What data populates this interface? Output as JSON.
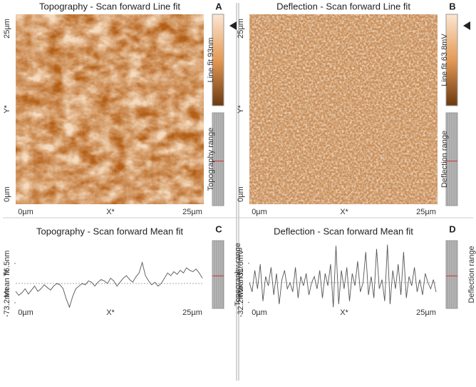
{
  "panels": [
    {
      "letter": "A",
      "title": "Topography - Scan forward   Line fit",
      "x_label": "X*",
      "y_label": "Y*",
      "x_ticks": [
        "0µm",
        "25µm"
      ],
      "y_ticks": [
        "0µm",
        "25µm"
      ],
      "colorbar_label": "Line fit 93nm",
      "range_label": "Topography range"
    },
    {
      "letter": "B",
      "title": "Deflection - Scan forward   Line fit",
      "x_label": "X*",
      "y_label": "Y*",
      "x_ticks": [
        "0µm",
        "25µm"
      ],
      "y_ticks": [
        "0µm",
        "25µm"
      ],
      "colorbar_label": "Line fit 63.8mV",
      "range_label": "Deflection range"
    }
  ],
  "chart_data": [
    {
      "type": "line",
      "letter": "C",
      "title": "Topography - Scan forward   Mean fit",
      "y_label": "Mean fit",
      "x_label": "X*",
      "x_ticks": [
        "0µm",
        "25µm"
      ],
      "range_label": "Topography range",
      "color": "#555555",
      "ylim": [
        -95,
        155
      ],
      "yticks": [
        {
          "value": -73.2,
          "label": "-73.2nm"
        },
        {
          "value": 76.5,
          "label": "76.5nm"
        }
      ],
      "values": [
        -30,
        -45,
        -35,
        -20,
        -40,
        -25,
        -10,
        -30,
        -20,
        -5,
        -15,
        -25,
        -10,
        0,
        -5,
        -20,
        -60,
        -90,
        -50,
        -20,
        -10,
        0,
        -5,
        10,
        5,
        -10,
        5,
        15,
        10,
        0,
        20,
        10,
        -10,
        5,
        20,
        30,
        15,
        5,
        25,
        40,
        80,
        30,
        10,
        -5,
        5,
        -10,
        0,
        20,
        40,
        30,
        45,
        35,
        50,
        40,
        60,
        50,
        45,
        55,
        40,
        20
      ]
    },
    {
      "type": "line",
      "letter": "D",
      "title": "Deflection - Scan forward   Mean fit",
      "y_label": "Mean fit",
      "x_label": "X*",
      "x_ticks": [
        "0µm",
        "25µm"
      ],
      "range_label": "Deflection range",
      "color": "#555555",
      "ylim": [
        -42,
        65
      ],
      "yticks": [
        {
          "value": -32.2,
          "label": "-32.2mV"
        },
        {
          "value": 31.6,
          "label": "31.6mV"
        }
      ],
      "values": [
        0,
        -15,
        20,
        -10,
        30,
        -30,
        10,
        -5,
        25,
        -20,
        15,
        -35,
        5,
        20,
        -10,
        0,
        -15,
        25,
        -25,
        10,
        -5,
        15,
        -20,
        0,
        10,
        -10,
        20,
        -25,
        15,
        -5,
        30,
        -40,
        60,
        -35,
        20,
        -10,
        25,
        -30,
        15,
        -5,
        35,
        -15,
        0,
        50,
        -20,
        10,
        -25,
        55,
        -10,
        5,
        -30,
        62,
        -35,
        20,
        -10,
        30,
        -20,
        50,
        -25,
        10,
        -5,
        25,
        -15,
        5,
        -20,
        15,
        0,
        -10,
        5,
        -15
      ]
    }
  ]
}
